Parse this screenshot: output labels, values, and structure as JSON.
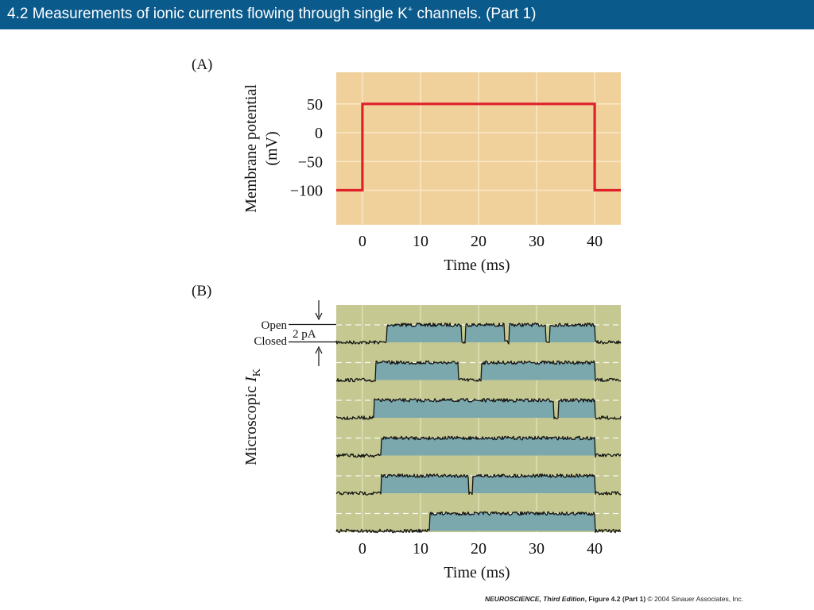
{
  "slide": {
    "title_main": "4.2  Measurements of ionic currents flowing through single K",
    "title_sup": "+",
    "title_tail": " channels. (Part 1)"
  },
  "panel_a": {
    "label": "(A)",
    "bg_color": "#f0d19c",
    "trace_color": "#e0202a"
  },
  "panel_b": {
    "label": "(B)",
    "bg_color": "#c5c991",
    "fill_color": "#7aa8ad",
    "open_label": "Open",
    "closed_label": "Closed",
    "scale_label": "2 pA"
  },
  "chart_data": [
    {
      "type": "line",
      "panel": "A",
      "ylabel_line1": "Membrane potential",
      "ylabel_line2": "(mV)",
      "xlabel": "Time (ms)",
      "x_ticks": [
        0,
        10,
        20,
        30,
        40
      ],
      "y_ticks": [
        50,
        0,
        -50,
        -100
      ],
      "y_tick_labels": [
        "50",
        "0",
        "−50",
        "−100"
      ],
      "xlim": [
        -4.5,
        44.5
      ],
      "ylim": [
        -160,
        105
      ],
      "grid": true,
      "series": [
        {
          "x": [
            -4.5,
            0,
            0,
            40,
            40,
            44.5
          ],
          "y": [
            -100,
            -100,
            50,
            50,
            -100,
            -100
          ]
        }
      ]
    },
    {
      "type": "line",
      "panel": "B",
      "ylabel_main": "Microscopic ",
      "ylabel_italic": "I",
      "ylabel_sub": "K",
      "xlabel": "Time (ms)",
      "x_ticks": [
        0,
        10,
        20,
        30,
        40
      ],
      "xlim": [
        -4.5,
        44.5
      ],
      "grid": true,
      "traces": [
        {
          "openings": [
            [
              4.2,
              17
            ],
            [
              17.8,
              24.5
            ],
            [
              25.3,
              31.5
            ],
            [
              32.3,
              40
            ]
          ]
        },
        {
          "openings": [
            [
              2.3,
              16.5
            ],
            [
              20.5,
              40
            ]
          ]
        },
        {
          "openings": [
            [
              2.0,
              33
            ],
            [
              33.8,
              40
            ]
          ]
        },
        {
          "openings": [
            [
              3.2,
              40
            ]
          ]
        },
        {
          "openings": [
            [
              3.2,
              18.3
            ],
            [
              19.0,
              40
            ]
          ]
        },
        {
          "openings": [
            [
              11.6,
              40
            ]
          ]
        }
      ]
    }
  ],
  "credit": {
    "book": "NEUROSCIENCE, Third Edition",
    "figure": ", Figure 4.2 (Part 1)",
    "copyright": "  © 2004 Sinauer Associates, Inc."
  }
}
